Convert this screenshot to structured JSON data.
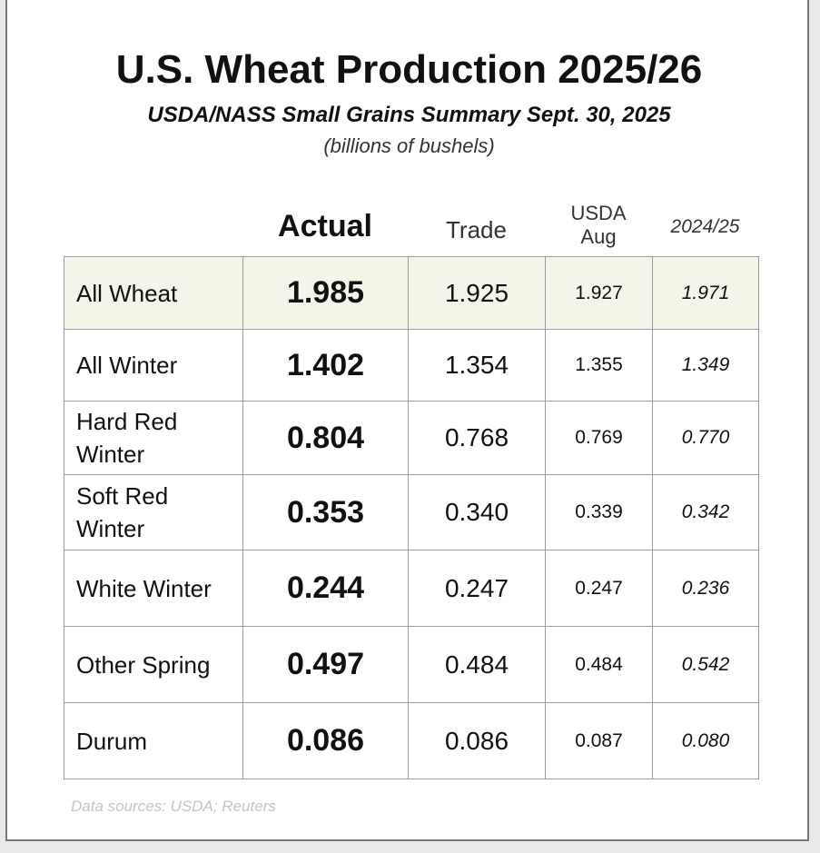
{
  "header": {
    "title": "U.S. Wheat Production 2025/26",
    "subtitle": "USDA/NASS Small Grains Summary Sept. 30, 2025",
    "units": "(billions of bushels)"
  },
  "table": {
    "columns": [
      "Actual",
      "Trade",
      "USDA Aug",
      "2024/25"
    ],
    "rows": [
      [
        "All Wheat",
        "1.985",
        "1.925",
        "1.927",
        "1.971"
      ],
      [
        "All Winter",
        "1.402",
        "1.354",
        "1.355",
        "1.349"
      ],
      [
        "Hard Red Winter",
        "0.804",
        "0.768",
        "0.769",
        "0.770"
      ],
      [
        "Soft Red Winter",
        "0.353",
        "0.340",
        "0.339",
        "0.342"
      ],
      [
        "White Winter",
        "0.244",
        "0.247",
        "0.247",
        "0.236"
      ],
      [
        "Other Spring",
        "0.497",
        "0.484",
        "0.484",
        "0.542"
      ],
      [
        "Durum",
        "0.086",
        "0.086",
        "0.087",
        "0.080"
      ]
    ]
  },
  "footer": {
    "source": "Data sources: USDA; Reuters"
  }
}
